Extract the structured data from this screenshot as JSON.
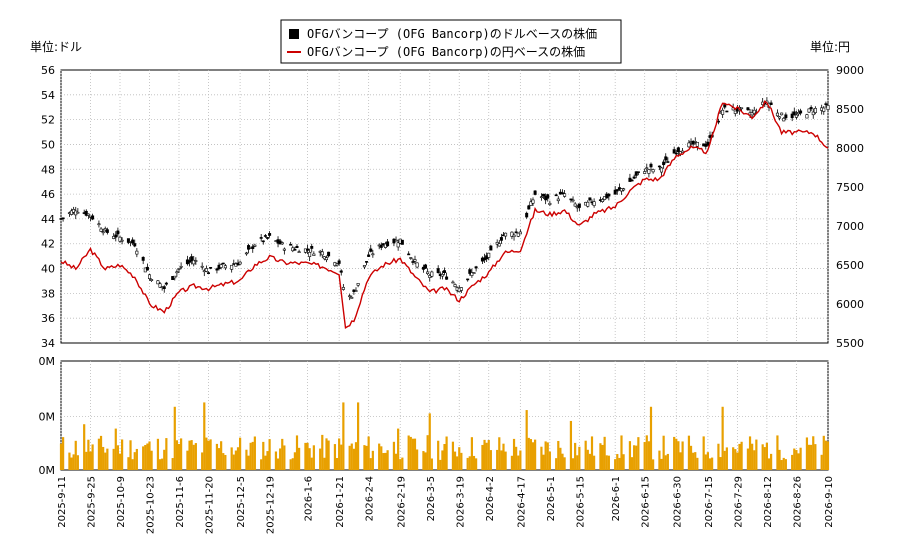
{
  "legend": {
    "items": [
      {
        "label": "OFGバンコープ (OFG Bancorp)のドルベースの株価",
        "color": "#000000",
        "marker": "square"
      },
      {
        "label": "OFGバンコープ (OFG Bancorp)の円ベースの株価",
        "color": "#cc0000",
        "marker": "line"
      }
    ]
  },
  "axes": {
    "left_unit": "単位:ドル",
    "right_unit": "単位:円"
  },
  "chart_data": [
    {
      "type": "line",
      "title": "",
      "x_range": [
        "2025-09-11",
        "2026-09-10"
      ],
      "x_tick_labels": [
        "2025-9-11",
        "2025-9-25",
        "2025-10-9",
        "2025-10-23",
        "2025-11-6",
        "2025-11-20",
        "2025-12-5",
        "2025-12-19",
        "2026-1-6",
        "2026-1-21",
        "2026-2-4",
        "2026-2-19",
        "2026-3-5",
        "2026-3-19",
        "2026-4-2",
        "2026-4-17",
        "2026-5-1",
        "2026-5-15",
        "2026-6-1",
        "2026-6-15",
        "2026-6-30",
        "2026-7-15",
        "2026-7-29",
        "2026-8-12",
        "2026-8-26",
        "2026-9-10"
      ],
      "y_left": {
        "label": "単位:ドル",
        "ylim": [
          34,
          56
        ],
        "ticks": [
          34,
          36,
          38,
          40,
          42,
          44,
          46,
          48,
          50,
          52,
          54,
          56
        ]
      },
      "y_right": {
        "label": "単位:円",
        "ylim": [
          5500,
          9000
        ],
        "ticks": [
          5500,
          6000,
          6500,
          7000,
          7500,
          8000,
          8500,
          9000
        ]
      },
      "grid": true,
      "series": [
        {
          "name": "OFGバンコープ (OFG Bancorp)のドルベースの株価",
          "axis": "left",
          "style": "candlestick",
          "color": "#000000",
          "points": [
            [
              "2025-09-11",
              44.0
            ],
            [
              "2025-09-18",
              44.8
            ],
            [
              "2025-09-25",
              44.3
            ],
            [
              "2025-10-02",
              43.0
            ],
            [
              "2025-10-09",
              42.5
            ],
            [
              "2025-10-16",
              42.0
            ],
            [
              "2025-10-23",
              39.5
            ],
            [
              "2025-10-30",
              38.4
            ],
            [
              "2025-11-06",
              40.0
            ],
            [
              "2025-11-13",
              40.7
            ],
            [
              "2025-11-20",
              39.8
            ],
            [
              "2025-11-27",
              40.2
            ],
            [
              "2025-12-05",
              40.5
            ],
            [
              "2025-12-12",
              42.0
            ],
            [
              "2025-12-19",
              42.5
            ],
            [
              "2025-12-26",
              41.8
            ],
            [
              "2026-01-06",
              41.5
            ],
            [
              "2026-01-13",
              41.3
            ],
            [
              "2026-01-21",
              40.5
            ],
            [
              "2026-01-24",
              37.5
            ],
            [
              "2026-01-28",
              38.0
            ],
            [
              "2026-02-04",
              41.0
            ],
            [
              "2026-02-11",
              42.0
            ],
            [
              "2026-02-19",
              42.3
            ],
            [
              "2026-02-26",
              40.5
            ],
            [
              "2026-03-05",
              39.5
            ],
            [
              "2026-03-12",
              39.5
            ],
            [
              "2026-03-19",
              38.5
            ],
            [
              "2026-03-26",
              39.8
            ],
            [
              "2026-04-02",
              41.0
            ],
            [
              "2026-04-09",
              42.7
            ],
            [
              "2026-04-17",
              43.0
            ],
            [
              "2026-04-24",
              46.0
            ],
            [
              "2026-05-01",
              45.5
            ],
            [
              "2026-05-08",
              46.0
            ],
            [
              "2026-05-15",
              44.8
            ],
            [
              "2026-05-22",
              45.5
            ],
            [
              "2026-06-01",
              46.0
            ],
            [
              "2026-06-08",
              47.0
            ],
            [
              "2026-06-15",
              48.0
            ],
            [
              "2026-06-22",
              48.0
            ],
            [
              "2026-06-30",
              49.5
            ],
            [
              "2026-07-07",
              50.0
            ],
            [
              "2026-07-15",
              50.0
            ],
            [
              "2026-07-22",
              52.8
            ],
            [
              "2026-07-29",
              52.8
            ],
            [
              "2026-08-05",
              52.5
            ],
            [
              "2026-08-12",
              53.5
            ],
            [
              "2026-08-19",
              52.3
            ],
            [
              "2026-08-26",
              52.3
            ],
            [
              "2026-09-03",
              52.8
            ],
            [
              "2026-09-10",
              53.0
            ]
          ]
        },
        {
          "name": "OFGバンコープ (OFG Bancorp)の円ベースの株価",
          "axis": "right",
          "style": "line",
          "color": "#cc0000",
          "points": [
            [
              "2025-09-11",
              6550
            ],
            [
              "2025-09-18",
              6450
            ],
            [
              "2025-09-25",
              6700
            ],
            [
              "2025-10-02",
              6450
            ],
            [
              "2025-10-09",
              6500
            ],
            [
              "2025-10-16",
              6350
            ],
            [
              "2025-10-23",
              6000
            ],
            [
              "2025-10-30",
              5900
            ],
            [
              "2025-11-06",
              6150
            ],
            [
              "2025-11-13",
              6230
            ],
            [
              "2025-11-20",
              6200
            ],
            [
              "2025-11-27",
              6250
            ],
            [
              "2025-12-05",
              6300
            ],
            [
              "2025-12-12",
              6500
            ],
            [
              "2025-12-19",
              6600
            ],
            [
              "2025-12-26",
              6530
            ],
            [
              "2026-01-06",
              6520
            ],
            [
              "2026-01-13",
              6480
            ],
            [
              "2026-01-21",
              6400
            ],
            [
              "2026-01-24",
              5700
            ],
            [
              "2026-01-28",
              5800
            ],
            [
              "2026-02-04",
              6350
            ],
            [
              "2026-02-11",
              6500
            ],
            [
              "2026-02-19",
              6580
            ],
            [
              "2026-02-26",
              6350
            ],
            [
              "2026-03-05",
              6150
            ],
            [
              "2026-03-12",
              6200
            ],
            [
              "2026-03-19",
              6050
            ],
            [
              "2026-03-26",
              6250
            ],
            [
              "2026-04-02",
              6400
            ],
            [
              "2026-04-09",
              6650
            ],
            [
              "2026-04-17",
              6700
            ],
            [
              "2026-04-24",
              7200
            ],
            [
              "2026-05-01",
              7150
            ],
            [
              "2026-05-08",
              7200
            ],
            [
              "2026-05-15",
              7000
            ],
            [
              "2026-05-22",
              7150
            ],
            [
              "2026-06-01",
              7250
            ],
            [
              "2026-06-08",
              7450
            ],
            [
              "2026-06-15",
              7600
            ],
            [
              "2026-06-22",
              7600
            ],
            [
              "2026-06-30",
              7900
            ],
            [
              "2026-07-07",
              8000
            ],
            [
              "2026-07-15",
              7950
            ],
            [
              "2026-07-22",
              8600
            ],
            [
              "2026-07-29",
              8500
            ],
            [
              "2026-08-05",
              8400
            ],
            [
              "2026-08-12",
              8600
            ],
            [
              "2026-08-19",
              8200
            ],
            [
              "2026-08-26",
              8200
            ],
            [
              "2026-09-03",
              8200
            ],
            [
              "2026-09-10",
              8000
            ]
          ]
        }
      ]
    },
    {
      "type": "bar",
      "title": "",
      "y_tick_labels": [
        "0M",
        "0M",
        "0M"
      ],
      "color": "#e8a000",
      "note_peaks": [
        [
          "2025-09-20",
          1.0
        ],
        [
          "2025-09-22",
          0.42
        ],
        [
          "2025-10-07",
          0.38
        ],
        [
          "2025-11-04",
          0.58
        ],
        [
          "2025-11-18",
          0.62
        ],
        [
          "2026-01-23",
          0.62
        ],
        [
          "2026-01-30",
          0.62
        ],
        [
          "2026-02-18",
          0.38
        ],
        [
          "2026-03-05",
          0.52
        ],
        [
          "2026-04-20",
          0.55
        ],
        [
          "2026-05-11",
          0.45
        ],
        [
          "2026-06-18",
          0.58
        ],
        [
          "2026-07-22",
          0.58
        ]
      ],
      "baseline_level": 0.18
    }
  ]
}
